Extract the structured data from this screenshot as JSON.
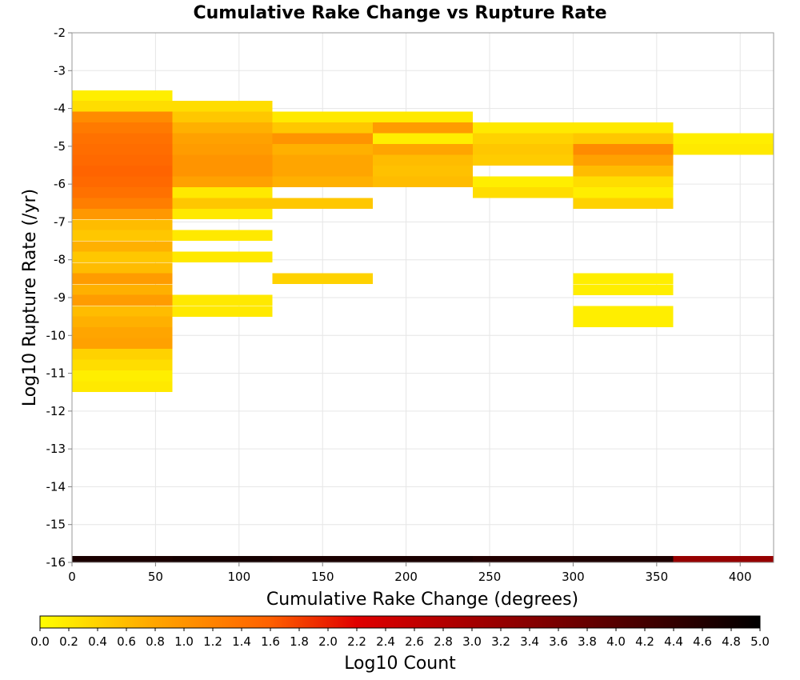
{
  "chart_data": {
    "type": "heatmap",
    "title": "Cumulative Rake Change vs Rupture Rate",
    "xlabel": "Cumulative Rake Change (degrees)",
    "ylabel": "Log10 Rupture Rate (/yr)",
    "xlim": [
      0,
      420
    ],
    "ylim": [
      -16,
      -2
    ],
    "x_ticks": [
      "0",
      "50",
      "100",
      "150",
      "200",
      "250",
      "300",
      "350",
      "400"
    ],
    "y_ticks": [
      "-2",
      "-3",
      "-4",
      "-5",
      "-6",
      "-7",
      "-8",
      "-9",
      "-10",
      "-11",
      "-12",
      "-13",
      "-14",
      "-15",
      "-16"
    ],
    "grid": true,
    "x_bin_width": 60,
    "y_bin_height": 0.285,
    "colorscale": {
      "label": "Log10 Count",
      "min": 0.0,
      "max": 5.0,
      "ticks": [
        "0.0",
        "0.2",
        "0.4",
        "0.6",
        "0.8",
        "1.0",
        "1.2",
        "1.4",
        "1.6",
        "1.8",
        "2.0",
        "2.2",
        "2.4",
        "2.6",
        "2.8",
        "3.0",
        "3.2",
        "3.4",
        "3.6",
        "3.8",
        "4.0",
        "4.2",
        "4.4",
        "4.6",
        "4.8",
        "5.0"
      ],
      "stops": [
        "#ffff00",
        "#ffa500",
        "#ff6000",
        "#e00000",
        "#800000",
        "#000000"
      ]
    },
    "columns": [
      {
        "x_start": 0,
        "cells": [
          {
            "y": -3.66,
            "v": 0.15
          },
          {
            "y": -3.94,
            "v": 0.3
          },
          {
            "y": -4.23,
            "v": 1.1
          },
          {
            "y": -4.51,
            "v": 1.3
          },
          {
            "y": -4.8,
            "v": 1.4
          },
          {
            "y": -5.08,
            "v": 1.45
          },
          {
            "y": -5.37,
            "v": 1.5
          },
          {
            "y": -5.65,
            "v": 1.55
          },
          {
            "y": -5.94,
            "v": 1.5
          },
          {
            "y": -6.22,
            "v": 1.4
          },
          {
            "y": -6.51,
            "v": 1.25
          },
          {
            "y": -6.79,
            "v": 0.95
          },
          {
            "y": -7.08,
            "v": 0.6
          },
          {
            "y": -7.36,
            "v": 0.5
          },
          {
            "y": -7.65,
            "v": 0.7
          },
          {
            "y": -7.93,
            "v": 0.5
          },
          {
            "y": -8.22,
            "v": 0.6
          },
          {
            "y": -8.5,
            "v": 0.9
          },
          {
            "y": -8.79,
            "v": 0.7
          },
          {
            "y": -9.07,
            "v": 0.9
          },
          {
            "y": -9.36,
            "v": 0.6
          },
          {
            "y": -9.64,
            "v": 0.7
          },
          {
            "y": -9.93,
            "v": 0.8
          },
          {
            "y": -10.21,
            "v": 0.85
          },
          {
            "y": -10.5,
            "v": 0.4
          },
          {
            "y": -10.78,
            "v": 0.3
          },
          {
            "y": -11.07,
            "v": 0.15
          },
          {
            "y": -11.35,
            "v": 0.2
          },
          {
            "y": -16.0,
            "v": 4.7
          }
        ]
      },
      {
        "x_start": 60,
        "cells": [
          {
            "y": -3.94,
            "v": 0.3
          },
          {
            "y": -4.23,
            "v": 0.5
          },
          {
            "y": -4.51,
            "v": 0.7
          },
          {
            "y": -4.8,
            "v": 0.85
          },
          {
            "y": -5.08,
            "v": 0.9
          },
          {
            "y": -5.37,
            "v": 1.0
          },
          {
            "y": -5.65,
            "v": 1.0
          },
          {
            "y": -5.94,
            "v": 0.85
          },
          {
            "y": -6.22,
            "v": 0.2
          },
          {
            "y": -6.51,
            "v": 0.5
          },
          {
            "y": -6.79,
            "v": 0.2
          },
          {
            "y": -7.36,
            "v": 0.2
          },
          {
            "y": -7.93,
            "v": 0.2
          },
          {
            "y": -9.07,
            "v": 0.2
          },
          {
            "y": -9.36,
            "v": 0.2
          },
          {
            "y": -16.0,
            "v": 4.75
          }
        ]
      },
      {
        "x_start": 120,
        "cells": [
          {
            "y": -4.23,
            "v": 0.2
          },
          {
            "y": -4.51,
            "v": 0.5
          },
          {
            "y": -4.8,
            "v": 1.0
          },
          {
            "y": -5.08,
            "v": 0.7
          },
          {
            "y": -5.37,
            "v": 0.8
          },
          {
            "y": -5.65,
            "v": 0.8
          },
          {
            "y": -5.94,
            "v": 0.7
          },
          {
            "y": -6.51,
            "v": 0.5
          },
          {
            "y": -8.5,
            "v": 0.4
          },
          {
            "y": -16.0,
            "v": 4.7
          }
        ]
      },
      {
        "x_start": 180,
        "cells": [
          {
            "y": -4.23,
            "v": 0.2
          },
          {
            "y": -4.51,
            "v": 0.9
          },
          {
            "y": -4.8,
            "v": 0.15
          },
          {
            "y": -5.08,
            "v": 0.8
          },
          {
            "y": -5.37,
            "v": 0.6
          },
          {
            "y": -5.65,
            "v": 0.55
          },
          {
            "y": -5.94,
            "v": 0.6
          },
          {
            "y": -16.0,
            "v": 4.7
          }
        ]
      },
      {
        "x_start": 240,
        "cells": [
          {
            "y": -4.51,
            "v": 0.2
          },
          {
            "y": -4.8,
            "v": 0.4
          },
          {
            "y": -5.08,
            "v": 0.5
          },
          {
            "y": -5.37,
            "v": 0.45
          },
          {
            "y": -5.94,
            "v": 0.15
          },
          {
            "y": -6.22,
            "v": 0.3
          },
          {
            "y": -16.0,
            "v": 4.6
          }
        ]
      },
      {
        "x_start": 300,
        "cells": [
          {
            "y": -4.51,
            "v": 0.2
          },
          {
            "y": -4.8,
            "v": 0.5
          },
          {
            "y": -5.08,
            "v": 1.1
          },
          {
            "y": -5.37,
            "v": 0.85
          },
          {
            "y": -5.65,
            "v": 0.6
          },
          {
            "y": -5.94,
            "v": 0.3
          },
          {
            "y": -6.22,
            "v": 0.15
          },
          {
            "y": -6.51,
            "v": 0.4
          },
          {
            "y": -8.5,
            "v": 0.15
          },
          {
            "y": -8.79,
            "v": 0.15
          },
          {
            "y": -9.36,
            "v": 0.15
          },
          {
            "y": -9.64,
            "v": 0.15
          },
          {
            "y": -16.0,
            "v": 4.65
          }
        ]
      },
      {
        "x_start": 360,
        "cells": [
          {
            "y": -4.8,
            "v": 0.15
          },
          {
            "y": -5.08,
            "v": 0.2
          },
          {
            "y": -16.0,
            "v": 3.2
          }
        ]
      }
    ]
  }
}
